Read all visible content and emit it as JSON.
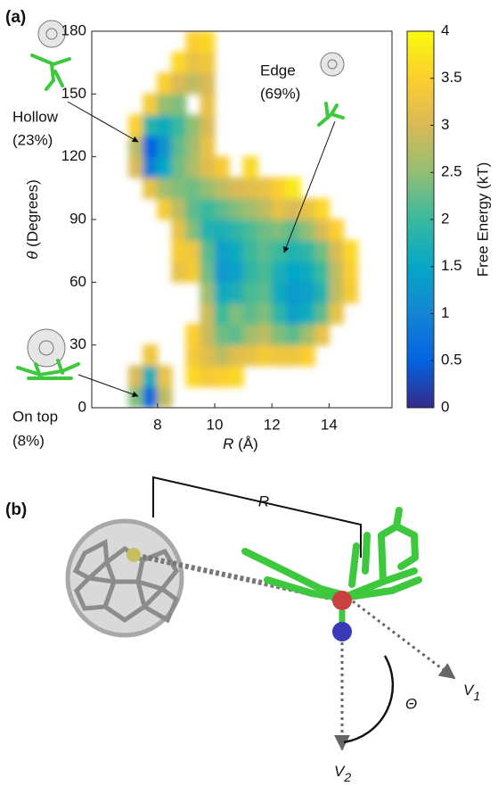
{
  "chart_data": {
    "type": "heatmap",
    "panel_label": "(a)",
    "xlabel": {
      "symbol": "R",
      "unit": "(Å)"
    },
    "ylabel": {
      "symbol": "θ",
      "unit": "(Degrees)"
    },
    "colorbar_label": "Free Energy (kT)",
    "xlim": [
      5.7,
      16.2
    ],
    "xticks": [
      8,
      10,
      12,
      14
    ],
    "ylim": [
      0,
      180
    ],
    "yticks": [
      0,
      30,
      60,
      90,
      120,
      150,
      180
    ],
    "clim": [
      0,
      4
    ],
    "cticks": [
      0,
      0.5,
      1,
      1.5,
      2,
      2.5,
      3,
      3.5,
      4
    ],
    "colormap": [
      "#352a87",
      "#0363e1",
      "#1485d4",
      "#06a7c6",
      "#38b99e",
      "#92bf73",
      "#d9ba56",
      "#fcce2e",
      "#f9fb0e"
    ],
    "x": [
      7.25,
      7.75,
      8.25,
      8.75,
      9.25,
      9.75,
      10.25,
      10.75,
      11.25,
      11.75,
      12.25,
      12.75,
      13.25,
      13.75,
      14.25,
      14.75
    ],
    "y": [
      5,
      15,
      25,
      35,
      45,
      55,
      65,
      75,
      85,
      95,
      105,
      115,
      125,
      135,
      145,
      155,
      165,
      175
    ],
    "z": [
      [
        2.4,
        0.6,
        2.8,
        null,
        null,
        null,
        null,
        null,
        null,
        null,
        null,
        null,
        null,
        null,
        null,
        null
      ],
      [
        3.0,
        1.6,
        3.2,
        null,
        3.6,
        3.4,
        3.5,
        3.6,
        null,
        null,
        null,
        null,
        null,
        null,
        null,
        null
      ],
      [
        null,
        3.3,
        null,
        null,
        3.4,
        3.1,
        2.8,
        3.1,
        3.2,
        3.4,
        3.3,
        3.3,
        3.5,
        null,
        null,
        null
      ],
      [
        null,
        null,
        null,
        null,
        3.5,
        2.9,
        2.3,
        2.2,
        2.6,
        2.8,
        2.4,
        2.2,
        2.6,
        3.2,
        null,
        null
      ],
      [
        null,
        null,
        null,
        null,
        null,
        2.9,
        2.0,
        2.4,
        2.2,
        2.4,
        1.9,
        1.4,
        1.6,
        2.2,
        3.2,
        null
      ],
      [
        null,
        null,
        null,
        null,
        null,
        2.6,
        1.6,
        1.7,
        2.1,
        2.2,
        1.6,
        1.3,
        1.4,
        1.8,
        2.8,
        3.4
      ],
      [
        null,
        null,
        null,
        3.2,
        3.4,
        2.3,
        1.3,
        1.4,
        1.9,
        2.1,
        1.7,
        1.5,
        1.6,
        2.0,
        2.8,
        3.5
      ],
      [
        null,
        null,
        null,
        3.4,
        3.3,
        2.2,
        1.4,
        1.6,
        2.0,
        2.2,
        2.0,
        1.8,
        1.9,
        2.3,
        3.0,
        3.6
      ],
      [
        null,
        null,
        null,
        3.2,
        2.4,
        1.8,
        1.7,
        1.9,
        2.1,
        2.3,
        2.4,
        2.2,
        2.5,
        3.0,
        3.5,
        null
      ],
      [
        null,
        null,
        3.4,
        2.8,
        2.2,
        2.0,
        2.2,
        2.4,
        2.6,
        2.8,
        3.2,
        3.0,
        3.2,
        3.6,
        null,
        null
      ],
      [
        null,
        3.2,
        2.6,
        2.4,
        2.3,
        2.5,
        2.8,
        3.0,
        3.1,
        3.2,
        3.5,
        3.8,
        null,
        null,
        null,
        null
      ],
      [
        3.0,
        0.9,
        1.5,
        2.3,
        2.7,
        3.1,
        3.4,
        null,
        3.6,
        null,
        null,
        null,
        null,
        null,
        null,
        null
      ],
      [
        2.8,
        0.5,
        1.2,
        2.2,
        2.6,
        3.2,
        null,
        null,
        null,
        null,
        null,
        null,
        null,
        null,
        null,
        null
      ],
      [
        3.5,
        1.8,
        1.6,
        2.0,
        2.5,
        3.0,
        null,
        null,
        null,
        null,
        null,
        null,
        null,
        null,
        null,
        null
      ],
      [
        null,
        3.4,
        2.5,
        2.4,
        null,
        3.2,
        null,
        null,
        null,
        null,
        null,
        null,
        null,
        null,
        null,
        null
      ],
      [
        null,
        null,
        3.5,
        3.0,
        2.8,
        3.0,
        null,
        null,
        null,
        null,
        null,
        null,
        null,
        null,
        null,
        null
      ],
      [
        null,
        null,
        null,
        3.6,
        3.2,
        3.3,
        null,
        null,
        null,
        null,
        null,
        null,
        null,
        null,
        null,
        null
      ],
      [
        null,
        null,
        null,
        null,
        3.5,
        3.6,
        null,
        null,
        null,
        null,
        null,
        null,
        null,
        null,
        null,
        null
      ]
    ],
    "annotations": [
      {
        "lines": [
          "Hollow",
          "(23%)"
        ]
      },
      {
        "lines": [
          "Edge",
          "(69%)"
        ]
      },
      {
        "lines": [
          "On top",
          "(8%)"
        ]
      }
    ]
  },
  "panel_b": {
    "label": "(b)",
    "distance": "R",
    "v1": {
      "symbol": "V",
      "sub": "1"
    },
    "v2": {
      "symbol": "V",
      "sub": "2"
    },
    "angle": "Θ"
  }
}
